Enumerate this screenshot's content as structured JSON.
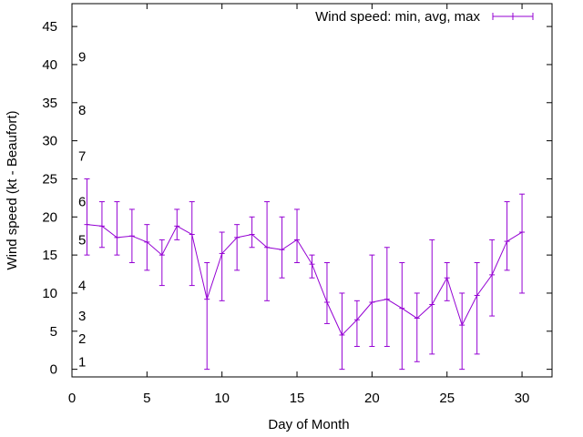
{
  "chart_data": {
    "type": "line",
    "title": "",
    "xlabel": "Day of Month",
    "ylabel": "Wind speed (kt - Beaufort)",
    "xlim": [
      0,
      32
    ],
    "ylim": [
      -1,
      48
    ],
    "x_ticks": [
      0,
      5,
      10,
      15,
      20,
      25,
      30
    ],
    "y_ticks": [
      0,
      5,
      10,
      15,
      20,
      25,
      30,
      35,
      40,
      45
    ],
    "grid": false,
    "legend": {
      "label": "Wind speed: min, avg, max",
      "position": "top-right"
    },
    "series_color": "#9400d3",
    "beaufort_labels": [
      {
        "label": "1",
        "y": 1
      },
      {
        "label": "2",
        "y": 4
      },
      {
        "label": "3",
        "y": 7
      },
      {
        "label": "4",
        "y": 11
      },
      {
        "label": "5",
        "y": 17
      },
      {
        "label": "6",
        "y": 22
      },
      {
        "label": "7",
        "y": 28
      },
      {
        "label": "8",
        "y": 34
      },
      {
        "label": "9",
        "y": 41
      }
    ],
    "series": [
      {
        "name": "Wind speed: min, avg, max",
        "x": [
          1,
          2,
          3,
          4,
          5,
          6,
          7,
          8,
          9,
          10,
          11,
          12,
          13,
          14,
          15,
          16,
          17,
          18,
          19,
          20,
          21,
          22,
          23,
          24,
          25,
          26,
          27,
          28,
          29,
          30
        ],
        "avg": [
          19,
          18.8,
          17.3,
          17.5,
          16.7,
          15,
          18.8,
          17.7,
          9.2,
          15.2,
          17.3,
          17.7,
          16,
          15.7,
          17,
          13.8,
          8.8,
          4.5,
          6.5,
          8.8,
          9.2,
          8,
          6.7,
          8.5,
          12,
          5.8,
          9.7,
          12.4,
          16.8,
          18
        ],
        "min": [
          15,
          16,
          15,
          14,
          13,
          11,
          17,
          11,
          0,
          9,
          13,
          16,
          9,
          12,
          14,
          12,
          6,
          0,
          3,
          3,
          3,
          0,
          1,
          2,
          9,
          0,
          2,
          7,
          13,
          10
        ],
        "max": [
          25,
          22,
          22,
          21,
          19,
          17,
          21,
          22,
          14,
          18,
          19,
          20,
          22,
          20,
          21,
          15,
          14,
          10,
          9,
          15,
          16,
          14,
          10,
          17,
          14,
          10,
          14,
          17,
          22,
          23
        ]
      }
    ]
  }
}
